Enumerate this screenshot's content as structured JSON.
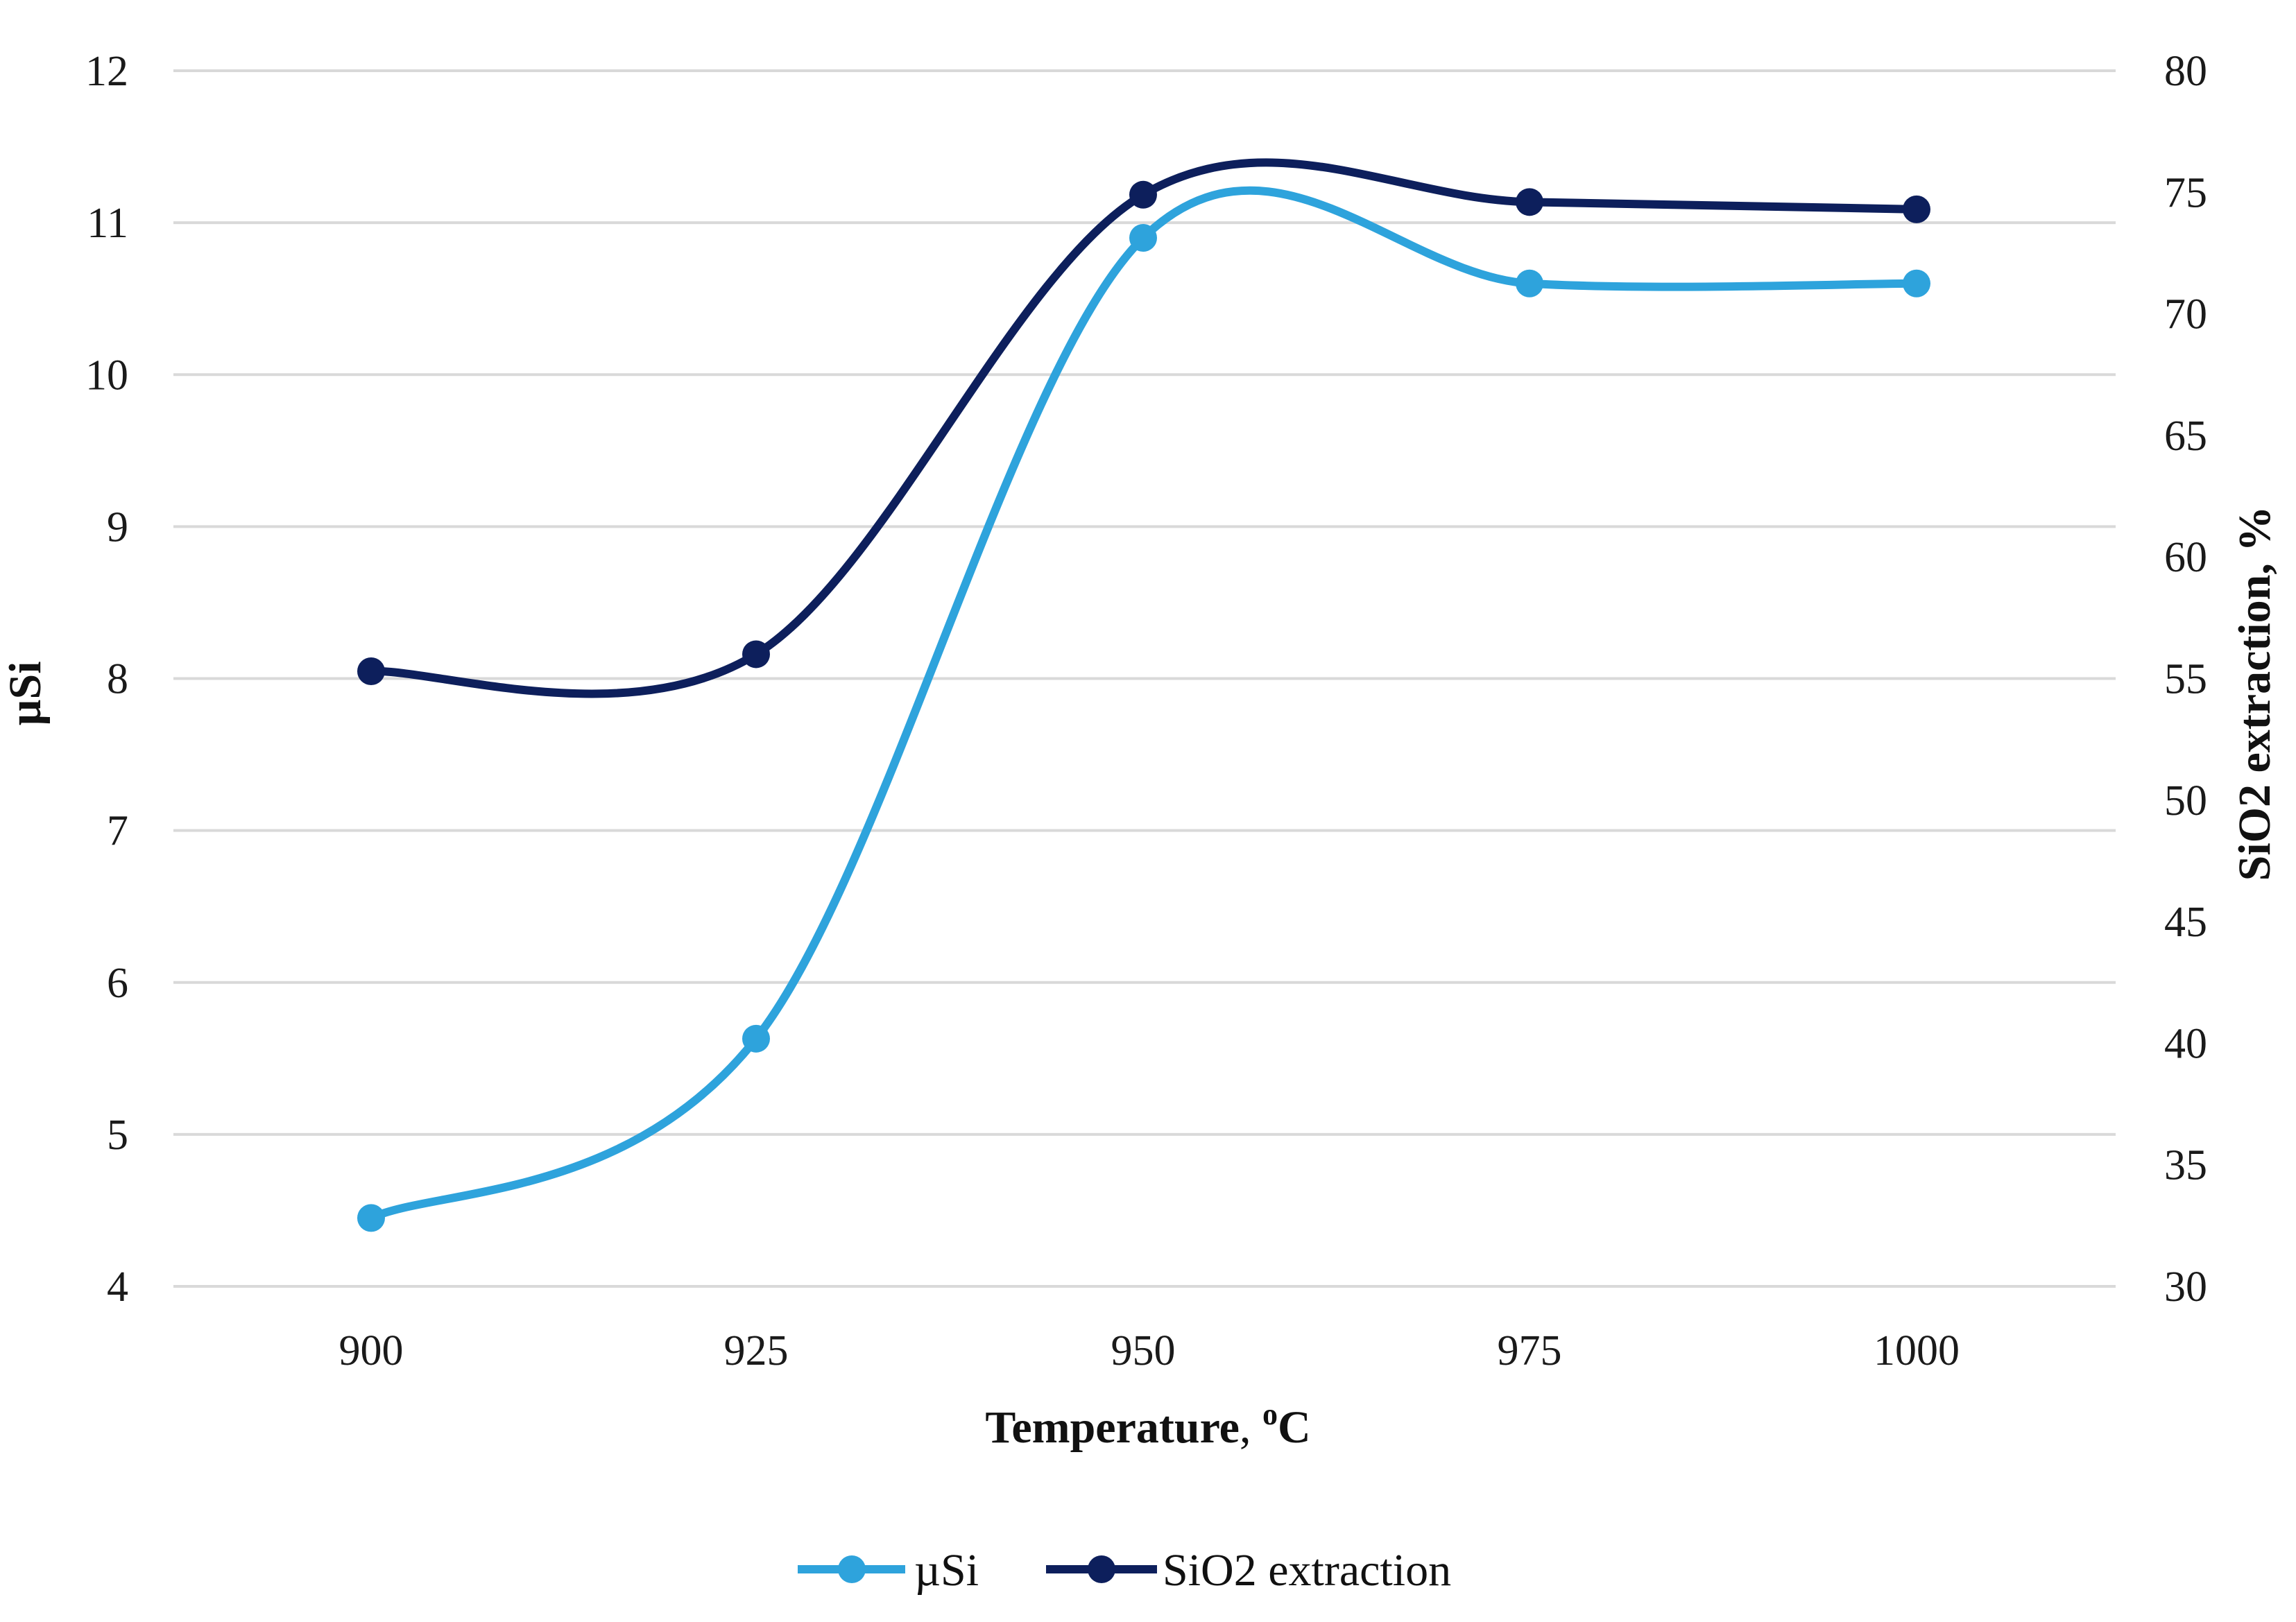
{
  "chart_data": {
    "type": "line",
    "smooth": true,
    "title": "",
    "xlabel": "Temperature, ºC",
    "xlabel_main": "Temperature",
    "xlabel_unit": "C",
    "xlabel_sup": "o",
    "ylabel_left": "µSi",
    "ylabel_right": "SiO2 extraction, %",
    "categories": [
      "900",
      "925",
      "950",
      "975",
      "1000"
    ],
    "y_left": {
      "min": 4,
      "max": 12,
      "step": 1,
      "ticks": [
        "4",
        "5",
        "6",
        "7",
        "8",
        "9",
        "10",
        "11",
        "12"
      ]
    },
    "y_right": {
      "min": 30,
      "max": 80,
      "step": 5,
      "ticks": [
        "30",
        "35",
        "40",
        "45",
        "50",
        "55",
        "60",
        "65",
        "70",
        "75",
        "80"
      ]
    },
    "gridlines": "horizontal",
    "legend_position": "bottom-center",
    "series": [
      {
        "name": "µSi",
        "axis": "left",
        "color": "#2ea3dc",
        "values": [
          4.45,
          5.63,
          10.9,
          10.6,
          10.6
        ]
      },
      {
        "name": "SiO2 extraction",
        "axis": "right",
        "color": "#0d1f5c",
        "values": [
          55.3,
          56.0,
          74.9,
          74.6,
          74.3
        ]
      }
    ]
  }
}
